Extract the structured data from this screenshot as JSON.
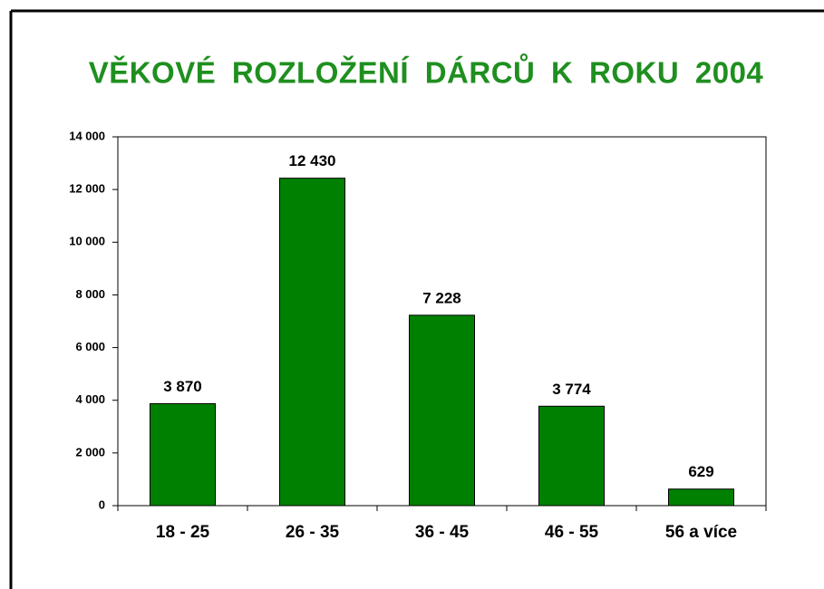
{
  "chart_data": {
    "type": "bar",
    "title": "VĚKOVÉ ROZLOŽENÍ DÁRCŮ K ROKU 2004",
    "categories": [
      "18 - 25",
      "26 - 35",
      "36 - 45",
      "46 - 55",
      "56 a více"
    ],
    "values": [
      3870,
      12430,
      7228,
      3774,
      629
    ],
    "value_labels": [
      "3 870",
      "12 430",
      "7 228",
      "3 774",
      "629"
    ],
    "color": "#008000",
    "ylim": [
      0,
      14000
    ],
    "yticks": [
      0,
      {
        "value": 2000,
        "label": "2 000"
      },
      {
        "value": 4000,
        "label": "4 000"
      },
      {
        "value": 6000,
        "label": "6 000"
      },
      {
        "value": 8000,
        "label": "8 000"
      },
      {
        "value": 10000,
        "label": "10 000"
      },
      {
        "value": 12000,
        "label": "12 000"
      },
      {
        "value": 14000,
        "label": "14 000"
      }
    ],
    "grid": false
  }
}
